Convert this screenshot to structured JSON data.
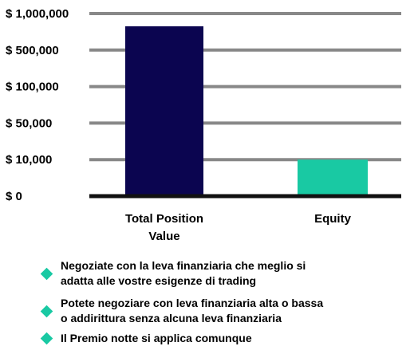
{
  "chart_data": {
    "type": "bar",
    "categories": [
      "Total Position Value",
      "Equity"
    ],
    "category_label_lines": [
      [
        "Total Position",
        "Value"
      ],
      [
        "Equity"
      ]
    ],
    "values": [
      1000000,
      10000
    ],
    "y_ticks": [
      "$ 1,000,000",
      "$ 500,000",
      "$ 100,000",
      "$ 50,000",
      "$ 10,000",
      "$ 0"
    ],
    "y_tick_values": [
      1000000,
      500000,
      100000,
      50000,
      10000,
      0
    ],
    "scale": "categorical-ticks",
    "grid": true,
    "colors": {
      "Total Position Value": "#0b0550",
      "Equity": "#19c9a3",
      "grid": "#888888",
      "baseline": "#111111"
    }
  },
  "bullets": [
    {
      "lines": [
        "Negoziate con la leva finanziaria che meglio si",
        "adatta alle vostre esigenze di trading"
      ]
    },
    {
      "lines": [
        "Potete negoziare con leva finanziaria alta o bassa",
        "o addirittura senza alcuna leva finanziaria"
      ]
    },
    {
      "lines": [
        "Il Premio notte si applica comunque"
      ]
    }
  ],
  "bullet_icon": "diamond-icon",
  "bullet_color": "#19c9a3"
}
